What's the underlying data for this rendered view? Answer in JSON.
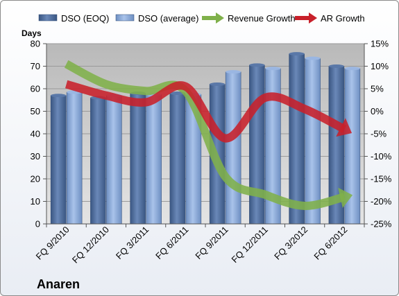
{
  "chart_data": {
    "type": "bar",
    "categories": [
      "FQ 9/2010",
      "FQ 12/2010",
      "FQ 3/2011",
      "FQ 6/2011",
      "FQ 9/2011",
      "FQ 12/2011",
      "FQ 3/2012",
      "FQ 6/2012"
    ],
    "series": [
      {
        "name": "DSO (EOQ)",
        "type": "bar",
        "axis": "left",
        "color": "#4a6896",
        "values": [
          57,
          56,
          58,
          58,
          62,
          70.5,
          75.5,
          70
        ]
      },
      {
        "name": "DSO (average)",
        "type": "bar",
        "axis": "left",
        "color": "#84a4d4",
        "values": [
          58.5,
          57,
          57.5,
          57.5,
          67.5,
          69,
          73.5,
          69
        ]
      },
      {
        "name": "Revenue Growth",
        "type": "line",
        "axis": "right",
        "color": "#7fb04a",
        "values": [
          10.5,
          6,
          4.5,
          4.5,
          -14.5,
          -18.5,
          -21,
          -19
        ]
      },
      {
        "name": "AR Growth",
        "type": "line",
        "axis": "right",
        "color": "#c8202a",
        "values": [
          6,
          3.5,
          2,
          5.5,
          -6,
          3,
          0.5,
          -4
        ]
      }
    ],
    "ylabel": "Days",
    "ylim": [
      0,
      80
    ],
    "yticks": [
      "0",
      "10",
      "20",
      "30",
      "40",
      "50",
      "60",
      "70",
      "80"
    ],
    "y2lim": [
      -25,
      15
    ],
    "y2ticks": [
      "-25%",
      "-20%",
      "-15%",
      "-10%",
      "-5%",
      "0%",
      "5%",
      "10%",
      "15%"
    ],
    "legend_position": "top",
    "grid": true
  },
  "footer": {
    "company": "Anaren"
  }
}
